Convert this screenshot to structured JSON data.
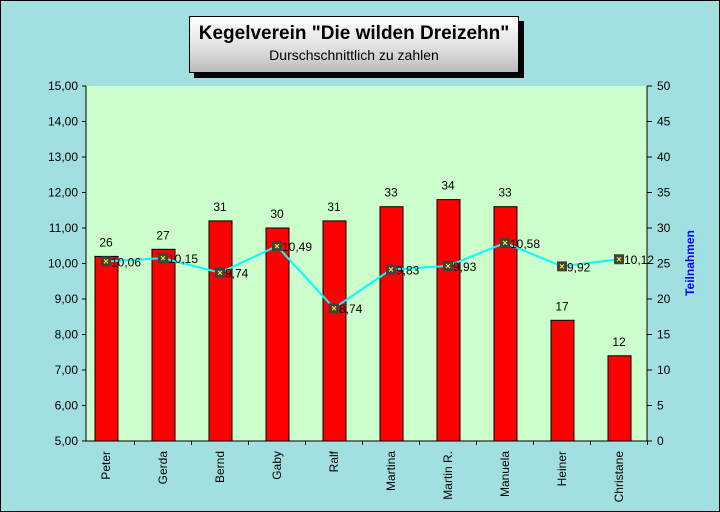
{
  "chart_data": {
    "type": "bar+line",
    "title": "Kegelverein \"Die wilden Dreizehn\"",
    "subtitle": "Durschschnittlich zu zahlen",
    "categories": [
      "Peter",
      "Gerda",
      "Bernd",
      "Gaby",
      "Ralf",
      "Martina",
      "Martin R.",
      "Manuela",
      "Heiner",
      "Christane"
    ],
    "series": [
      {
        "type": "bar",
        "axis": "right",
        "values": [
          26,
          27,
          31,
          30,
          31,
          33,
          34,
          33,
          17,
          12
        ],
        "color": "#ff0000"
      },
      {
        "type": "line",
        "axis": "left",
        "values": [
          10.06,
          10.15,
          9.74,
          10.49,
          8.74,
          9.83,
          9.93,
          10.58,
          9.92,
          10.12
        ],
        "labels": [
          "10,06",
          "10,15",
          "9,74",
          "10,49",
          "8,74",
          "9,83",
          "9,93",
          "10,58",
          "9,92",
          "10,12"
        ],
        "color": "#00ffff"
      }
    ],
    "y_left": {
      "range": [
        5,
        15
      ],
      "ticks": [
        "5,00",
        "6,00",
        "7,00",
        "8,00",
        "9,00",
        "10,00",
        "11,00",
        "12,00",
        "13,00",
        "14,00",
        "15,00"
      ]
    },
    "y_right": {
      "label": "Teilnahmen",
      "range": [
        0,
        50
      ],
      "ticks": [
        "0",
        "5",
        "10",
        "15",
        "20",
        "25",
        "30",
        "35",
        "40",
        "45",
        "50"
      ],
      "label_color": "#0000ff"
    },
    "plot_background": "#ccffcc",
    "background": "#a2dfe0",
    "grid": false
  }
}
